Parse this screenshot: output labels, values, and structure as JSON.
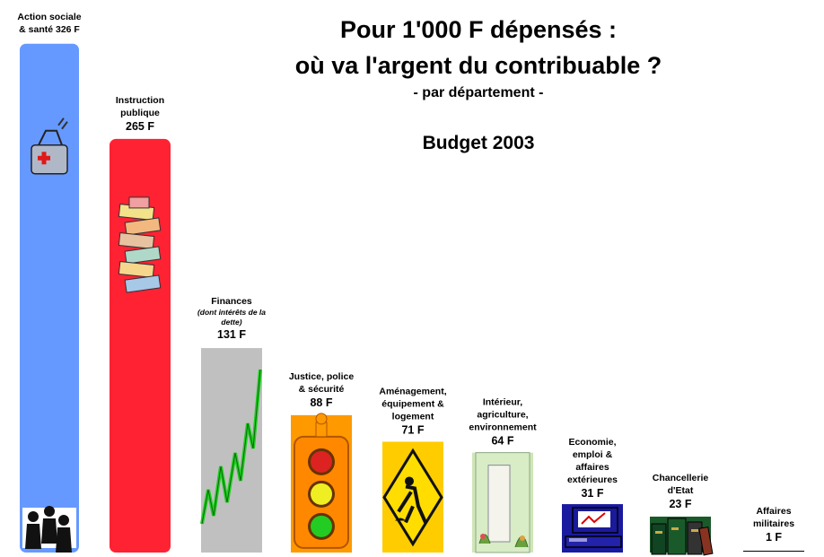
{
  "title_line1": "Pour 1'000 F dépensés :",
  "title_line2": "où va l'argent du contribuable ?",
  "subtitle": "- par département -",
  "budget_label": "Budget 2003",
  "chart_data": {
    "type": "bar",
    "title": "Pour 1'000 F dépensés : où va l'argent du contribuable ?",
    "subtitle": "- par département -",
    "unit": "F",
    "ylim": [
      0,
      326
    ],
    "grid": false,
    "legend": "none",
    "categories": [
      "Action sociale & santé",
      "Instruction publique",
      "Finances (dont intérêts de la dette)",
      "Justice, police & sécurité",
      "Aménagement, équipement & logement",
      "Intérieur, agriculture, environnement",
      "Economie, emploi & affaires extérieures",
      "Chancellerie d'Etat",
      "Affaires militaires"
    ],
    "values": [
      326,
      265,
      131,
      88,
      71,
      64,
      31,
      23,
      1
    ],
    "bars": [
      {
        "label_lines": [
          "Action sociale",
          "& santé 326 F"
        ],
        "value_text": "",
        "sub_lines": [],
        "color": "#6699ff",
        "icon": "medical-bag-icon"
      },
      {
        "label_lines": [
          "Instruction",
          "publique"
        ],
        "value_text": "265 F",
        "sub_lines": [],
        "color": "#ff2233",
        "icon": "books-stack-icon"
      },
      {
        "label_lines": [
          "Finances"
        ],
        "value_text": "131 F",
        "sub_lines": [
          "(dont intérêts de la",
          "dette)"
        ],
        "color": "#c0c0c0",
        "icon": "rising-graph-icon"
      },
      {
        "label_lines": [
          "Justice, police",
          "& sécurité"
        ],
        "value_text": "88 F",
        "sub_lines": [],
        "color": "#ff9900",
        "icon": "traffic-light-icon"
      },
      {
        "label_lines": [
          "Aménagement,",
          "équipement &",
          "logement"
        ],
        "value_text": "71 F",
        "sub_lines": [],
        "color": "#ffcc00",
        "icon": "road-work-sign-icon"
      },
      {
        "label_lines": [
          "Intérieur,",
          "agriculture,",
          "environnement"
        ],
        "value_text": "64 F",
        "sub_lines": [],
        "color": "#cfe6b8",
        "icon": "garden-door-icon"
      },
      {
        "label_lines": [
          "Economie,",
          "emploi &",
          "affaires",
          "extérieures"
        ],
        "value_text": "31 F",
        "sub_lines": [],
        "color": "#1a1aa0",
        "icon": "computer-icon"
      },
      {
        "label_lines": [
          "Chancellerie",
          "d'Etat"
        ],
        "value_text": "23 F",
        "sub_lines": [],
        "color": "#1a5a2a",
        "icon": "ledger-books-icon"
      },
      {
        "label_lines": [
          "Affaires",
          "militaires"
        ],
        "value_text": "1 F",
        "sub_lines": [],
        "color": "#000000",
        "icon": "none"
      }
    ]
  }
}
